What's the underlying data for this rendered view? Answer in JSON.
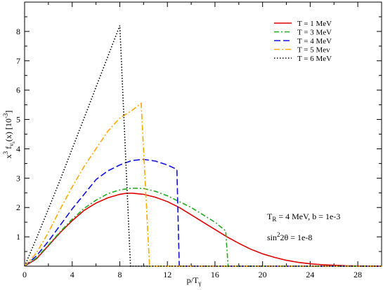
{
  "chart_data": {
    "type": "line",
    "xlabel_main": "p/T",
    "xlabel_sub": "γ",
    "ylabel_parts": {
      "x": "x",
      "sup3": "3",
      "f": " f",
      "sub_nu": "ν",
      "sub_s": "s",
      "arg": "(x)  [10",
      "exp": "-3",
      "close": "]"
    },
    "xlim": [
      0,
      30
    ],
    "ylim": [
      0,
      9
    ],
    "xticks": [
      0,
      4,
      8,
      12,
      16,
      20,
      24,
      28
    ],
    "xtick_labels": [
      "0",
      "4",
      "8",
      "12",
      "16",
      "20",
      "24",
      "28"
    ],
    "yticks": [
      1,
      2,
      3,
      4,
      5,
      6,
      7,
      8
    ],
    "ytick_labels": [
      "1",
      "2",
      "3",
      "4",
      "5",
      "6",
      "7",
      "8"
    ],
    "legend_position": "top-right",
    "grid": false,
    "series": [
      {
        "name": "T = 1 MeV",
        "color": "#dd0000",
        "dash": "",
        "x": [
          0,
          1,
          2,
          3,
          4,
          5,
          6,
          7,
          8,
          8.5,
          9,
          10,
          11,
          12,
          13,
          14,
          15,
          16,
          17,
          18,
          19,
          20,
          21,
          22,
          23,
          24,
          25,
          26,
          27,
          28,
          29,
          30
        ],
        "y": [
          0,
          0.25,
          0.7,
          1.15,
          1.55,
          1.9,
          2.15,
          2.33,
          2.45,
          2.48,
          2.49,
          2.45,
          2.35,
          2.2,
          2.0,
          1.75,
          1.5,
          1.25,
          1.0,
          0.78,
          0.58,
          0.42,
          0.3,
          0.2,
          0.13,
          0.08,
          0.05,
          0.03,
          0.015,
          0.008,
          0.004,
          0.002
        ]
      },
      {
        "name": "T = 3 MeV",
        "color": "#22aa22",
        "dash": "7,3,2,3",
        "x": [
          0,
          1,
          2,
          3,
          4,
          5,
          6,
          7,
          8,
          9,
          10,
          11,
          12,
          13,
          14,
          15,
          16,
          16.9,
          17.1,
          18,
          20,
          22,
          24,
          26,
          28,
          30
        ],
        "y": [
          0,
          0.28,
          0.72,
          1.18,
          1.6,
          1.97,
          2.25,
          2.47,
          2.6,
          2.66,
          2.65,
          2.55,
          2.4,
          2.2,
          2.0,
          1.75,
          1.5,
          1.2,
          0.0,
          0.0,
          0.0,
          0.0,
          0.0,
          0.0,
          0.0,
          0.0
        ]
      },
      {
        "name": "T = 4 MeV",
        "color": "#1111dd",
        "dash": "9,4",
        "x": [
          0,
          1,
          2,
          3,
          4,
          5,
          6,
          7,
          8,
          9,
          10,
          11,
          12,
          12.8,
          13.0,
          13.5,
          16,
          20,
          24,
          28,
          30
        ],
        "y": [
          0,
          0.35,
          0.85,
          1.4,
          1.95,
          2.45,
          2.95,
          3.25,
          3.45,
          3.6,
          3.64,
          3.58,
          3.45,
          3.3,
          0.0,
          0.0,
          0.0,
          0.0,
          0.0,
          0.0,
          0.0
        ]
      },
      {
        "name": "T = 5 Mev",
        "color": "#ffaa00",
        "dash": "8,3,2,3",
        "x": [
          0,
          1,
          2,
          3,
          4,
          5,
          6,
          7,
          8,
          9,
          9.8,
          10.5,
          11,
          14,
          18,
          22,
          26,
          30
        ],
        "y": [
          0,
          0.45,
          1.15,
          1.95,
          2.7,
          3.4,
          4.0,
          4.6,
          5.05,
          5.3,
          5.55,
          0.0,
          0.0,
          0.0,
          0.0,
          0.0,
          0.0,
          0.0
        ]
      },
      {
        "name": "T = 6 MeV",
        "color": "#000000",
        "dash": "1.5,2.5",
        "x": [
          0,
          1,
          2,
          3,
          4,
          5,
          6,
          7,
          8,
          8.9,
          9.5,
          12,
          16,
          20,
          24,
          28,
          30
        ],
        "y": [
          0,
          0.95,
          1.95,
          2.95,
          4.0,
          5.05,
          6.1,
          7.15,
          8.2,
          0.0,
          0.0,
          0.0,
          0.0,
          0.0,
          0.0,
          0.0,
          0.0
        ]
      }
    ],
    "annotation1": {
      "T": "T",
      "R": "R",
      "rest": " = 4 MeV, b = 1e-3"
    },
    "annotation2": {
      "sin": "sin",
      "sup": "2",
      "rest": "2θ = 1e-8"
    }
  }
}
